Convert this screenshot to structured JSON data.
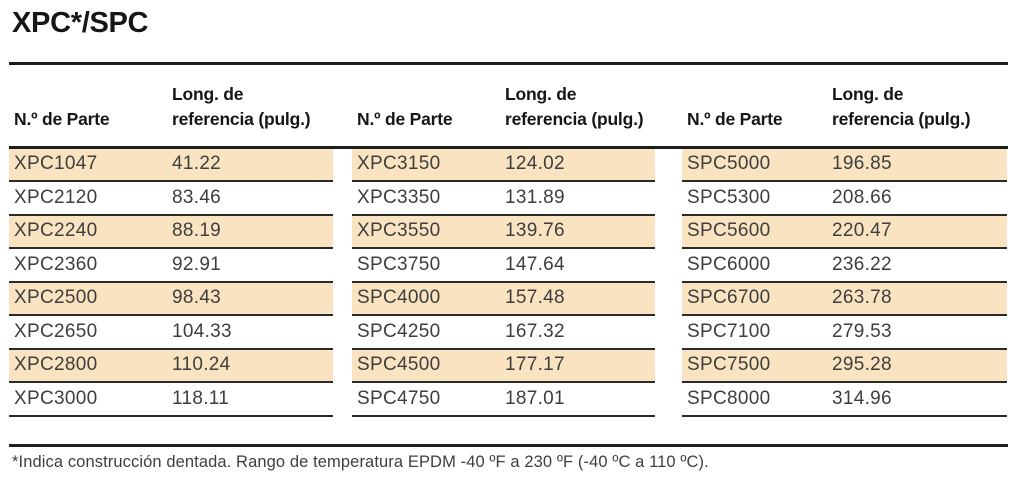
{
  "title": "XPC*/SPC",
  "table": {
    "column_headers": {
      "part": "N.º de Parte",
      "length_line1": "Long. de",
      "length_line2": "referencia (pulg.)"
    },
    "groups": [
      {
        "rows": [
          [
            "XPC1047",
            "41.22"
          ],
          [
            "XPC2120",
            "83.46"
          ],
          [
            "XPC2240",
            "88.19"
          ],
          [
            "XPC2360",
            "92.91"
          ],
          [
            "XPC2500",
            "98.43"
          ],
          [
            "XPC2650",
            "104.33"
          ],
          [
            "XPC2800",
            "110.24"
          ],
          [
            "XPC3000",
            "118.11"
          ]
        ]
      },
      {
        "rows": [
          [
            "XPC3150",
            "124.02"
          ],
          [
            "XPC3350",
            "131.89"
          ],
          [
            "XPC3550",
            "139.76"
          ],
          [
            "SPC3750",
            "147.64"
          ],
          [
            "SPC4000",
            "157.48"
          ],
          [
            "SPC4250",
            "167.32"
          ],
          [
            "SPC4500",
            "177.17"
          ],
          [
            "SPC4750",
            "187.01"
          ]
        ]
      },
      {
        "rows": [
          [
            "SPC5000",
            "196.85"
          ],
          [
            "SPC5300",
            "208.66"
          ],
          [
            "SPC5600",
            "220.47"
          ],
          [
            "SPC6000",
            "236.22"
          ],
          [
            "SPC6700",
            "263.78"
          ],
          [
            "SPC7100",
            "279.53"
          ],
          [
            "SPC7500",
            "295.28"
          ],
          [
            "SPC8000",
            "314.96"
          ]
        ]
      }
    ]
  },
  "footnote": "*Indica construcción dentada. Rango de temperatura EPDM -40 ºF a 230 ºF (-40 ºC a 110 ºC).",
  "colors": {
    "highlight": "#fae3c1",
    "rule": "#1e1e1e",
    "row_line": "#2a2a2a",
    "text": "#3e3e3e",
    "heading": "#161616"
  }
}
